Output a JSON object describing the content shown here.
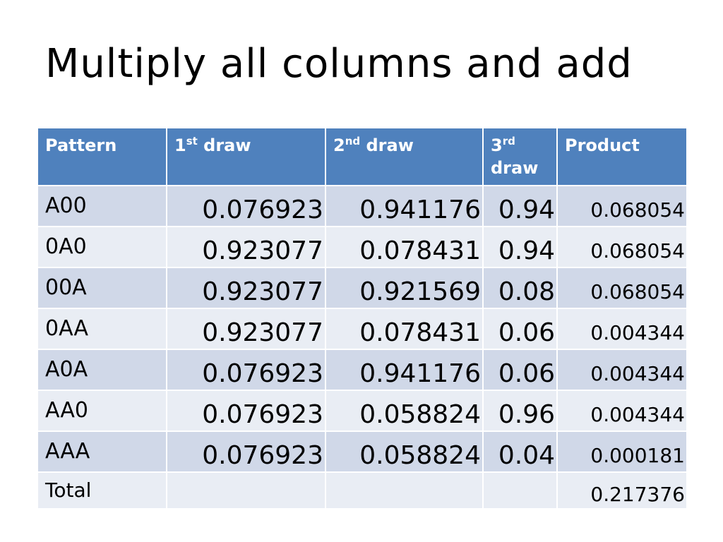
{
  "title": "Multiply all columns and add",
  "table": {
    "header": [
      [
        "Pattern"
      ],
      [
        "1",
        "st",
        " draw"
      ],
      [
        "2",
        "nd",
        " draw"
      ],
      [
        "3",
        "rd",
        " draw"
      ],
      [
        "Product"
      ]
    ],
    "rows": [
      [
        "A00",
        "0.076923",
        "0.941176",
        "0.94",
        "0.068054"
      ],
      [
        "0A0",
        "0.923077",
        "0.078431",
        "0.94",
        "0.068054"
      ],
      [
        "00A",
        "0.923077",
        "0.921569",
        "0.08",
        "0.068054"
      ],
      [
        "0AA",
        "0.923077",
        "0.078431",
        "0.06",
        "0.004344"
      ],
      [
        "A0A",
        "0.076923",
        "0.941176",
        "0.06",
        "0.004344"
      ],
      [
        "AA0",
        "0.076923",
        "0.058824",
        "0.96",
        "0.004344"
      ],
      [
        "AAA",
        "0.076923",
        "0.058824",
        "0.04",
        "0.000181"
      ]
    ],
    "total": {
      "label": "Total",
      "product": "0.217376"
    }
  }
}
